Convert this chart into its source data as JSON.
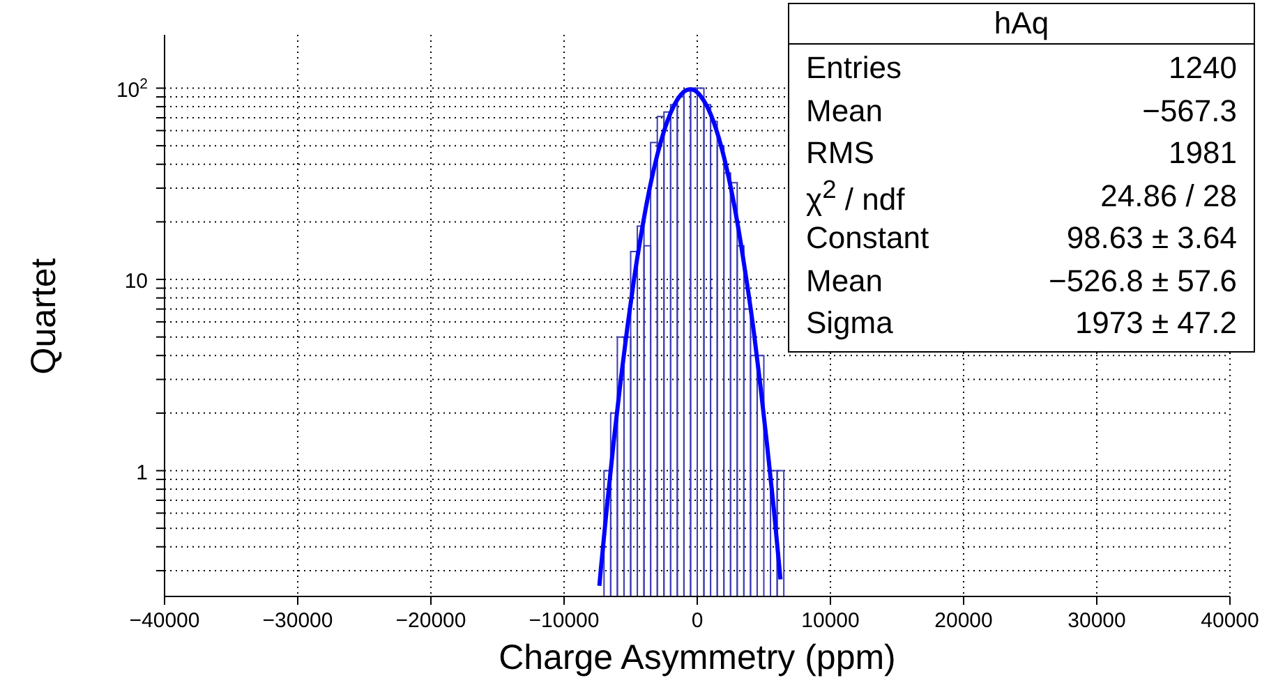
{
  "chart_data": {
    "type": "histogram",
    "xlabel": "Charge Asymmetry (ppm)",
    "ylabel": "Quartet",
    "series": [
      {
        "color": "#3c3cb4",
        "bins": [
          -7000,
          -6500,
          -6000,
          -5500,
          -5000,
          -4500,
          -4000,
          -3500,
          -3000,
          -2500,
          -2000,
          -1500,
          -1000,
          -500,
          0,
          500,
          1000,
          1500,
          2000,
          2500,
          3000,
          3500,
          4000,
          4500,
          5000,
          5500,
          6000,
          6500
        ],
        "values": [
          1,
          2,
          5,
          5,
          14,
          19,
          15,
          52,
          71,
          75,
          82,
          90,
          97,
          100,
          100,
          82,
          67,
          50,
          36,
          32,
          15,
          7,
          4,
          4,
          null,
          1,
          1
        ]
      },
      {
        "type": "line",
        "color": "#0000ff",
        "x": [
          -7350,
          -7250,
          -6750,
          -6250,
          -5750,
          -5250,
          -4750,
          -4250,
          -3750,
          -3250,
          -2750,
          -2250,
          -1750,
          -1250,
          -750,
          -527,
          -250,
          250,
          750,
          1250,
          1750,
          2250,
          2750,
          3250,
          3750,
          4250,
          4750,
          5250,
          5750,
          6250
        ],
        "values": [
          0.25,
          0.3,
          0.68,
          1.47,
          2.96,
          5.6,
          10,
          16.6,
          26,
          38,
          52,
          67,
          81,
          92,
          98,
          98.63,
          97.7,
          91,
          80,
          66,
          51,
          37,
          25,
          15.8,
          9.4,
          5.3,
          2.75,
          1.35,
          0.63,
          0.27
        ]
      }
    ],
    "xlim": [
      -40000,
      40000
    ],
    "xticks": [
      -40000,
      -30000,
      -20000,
      -10000,
      0,
      10000,
      20000,
      30000,
      40000
    ],
    "ylim": [
      0.22,
      190
    ],
    "yticks": [
      {
        "value": 0.3,
        "label": null
      },
      {
        "value": 0.4,
        "label": null
      },
      {
        "value": 0.5,
        "label": null
      },
      {
        "value": 0.6,
        "label": null
      },
      {
        "value": 0.7,
        "label": null
      },
      {
        "value": 0.8,
        "label": null
      },
      {
        "value": 0.9,
        "label": null
      },
      1,
      {
        "value": 2,
        "label": null
      },
      {
        "value": 3,
        "label": null
      },
      {
        "value": 4,
        "label": null
      },
      {
        "value": 5,
        "label": null
      },
      {
        "value": 6,
        "label": null
      },
      {
        "value": 7,
        "label": null
      },
      {
        "value": 8,
        "label": null
      },
      {
        "value": 9,
        "label": null
      },
      10,
      {
        "value": 20,
        "label": null
      },
      {
        "value": 30,
        "label": null
      },
      {
        "value": 40,
        "label": null
      },
      {
        "value": 50,
        "label": null
      },
      {
        "value": 60,
        "label": null
      },
      {
        "value": 70,
        "label": null
      },
      {
        "value": 80,
        "label": null
      },
      {
        "value": 90,
        "label": null
      },
      {
        "value": 100,
        "label": "10$^{2}$"
      }
    ],
    "log": "y",
    "grid": true,
    "annotations": [
      "hAq",
      "Entries",
      "1240",
      "Mean",
      "−567.3",
      "RMS",
      "1981",
      "χ$^{2}$ / ndf",
      "24.86 / 28",
      "Constant",
      "98.63 ± 3.64",
      "Mean",
      "−526.8 ± 57.6",
      "Sigma",
      "1973 ± 47.2"
    ]
  }
}
